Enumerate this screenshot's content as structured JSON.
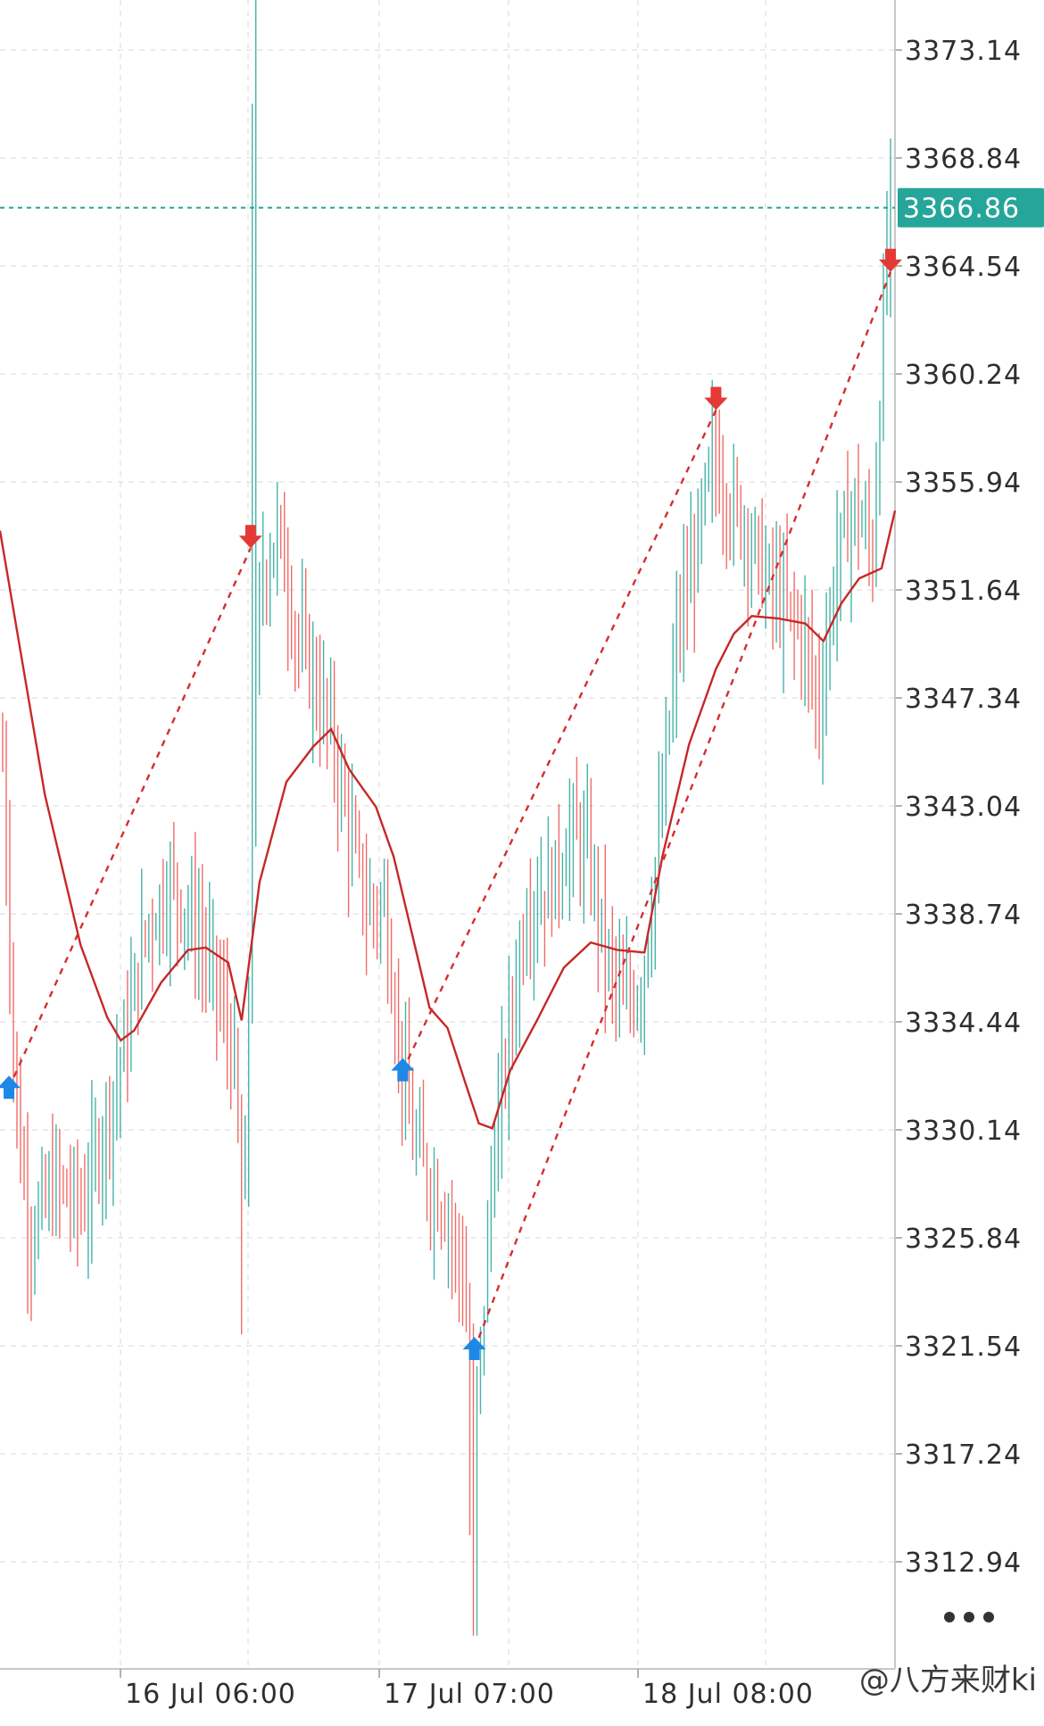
{
  "chart_data": {
    "type": "line",
    "instrument_hint": "candlestick price chart with moving average",
    "y_ticks": [
      "3373.14",
      "3368.84",
      "3364.54",
      "3360.24",
      "3355.94",
      "3351.64",
      "3347.34",
      "3343.04",
      "3338.74",
      "3334.44",
      "3330.14",
      "3325.84",
      "3321.54",
      "3317.24",
      "3312.94"
    ],
    "ylim": [
      3308.6,
      3375.5
    ],
    "x_ticks": [
      "16 Jul 06:00",
      "17 Jul 07:00",
      "18 Jul 08:00"
    ],
    "current_price": "3366.86",
    "grid": true,
    "colors": {
      "up": "#26a69a",
      "down": "#ef5350",
      "ma": "#c62828",
      "current_line": "#26a69a",
      "buy_arrow": "#1e88e5",
      "sell_arrow": "#e53935",
      "trade_line": "#d32f2f"
    },
    "moving_average": [
      [
        0,
        3354.0
      ],
      [
        0.05,
        3343.5
      ],
      [
        0.09,
        3337.5
      ],
      [
        0.12,
        3334.6
      ],
      [
        0.135,
        3333.7
      ],
      [
        0.15,
        3334.1
      ],
      [
        0.18,
        3336.0
      ],
      [
        0.21,
        3337.3
      ],
      [
        0.23,
        3337.4
      ],
      [
        0.255,
        3336.8
      ],
      [
        0.27,
        3334.5
      ],
      [
        0.29,
        3340.0
      ],
      [
        0.32,
        3344.0
      ],
      [
        0.35,
        3345.4
      ],
      [
        0.37,
        3346.1
      ],
      [
        0.39,
        3344.5
      ],
      [
        0.42,
        3343.0
      ],
      [
        0.44,
        3341.0
      ],
      [
        0.46,
        3338.0
      ],
      [
        0.48,
        3335.0
      ],
      [
        0.5,
        3334.2
      ],
      [
        0.52,
        3332.0
      ],
      [
        0.535,
        3330.4
      ],
      [
        0.55,
        3330.2
      ],
      [
        0.57,
        3332.5
      ],
      [
        0.6,
        3334.5
      ],
      [
        0.63,
        3336.6
      ],
      [
        0.66,
        3337.6
      ],
      [
        0.69,
        3337.3
      ],
      [
        0.72,
        3337.2
      ],
      [
        0.74,
        3341.0
      ],
      [
        0.77,
        3345.5
      ],
      [
        0.8,
        3348.5
      ],
      [
        0.82,
        3349.9
      ],
      [
        0.84,
        3350.6
      ],
      [
        0.87,
        3350.5
      ],
      [
        0.9,
        3350.3
      ],
      [
        0.92,
        3349.6
      ],
      [
        0.94,
        3351.1
      ],
      [
        0.96,
        3352.1
      ],
      [
        0.985,
        3352.5
      ],
      [
        1.0,
        3354.8
      ]
    ],
    "trades": [
      {
        "type": "buy",
        "x": 0.01,
        "price": 3331.8
      },
      {
        "type": "sell",
        "x": 0.28,
        "price": 3353.3
      },
      {
        "type": "buy",
        "x": 0.45,
        "price": 3332.5
      },
      {
        "type": "sell",
        "x": 0.8,
        "price": 3358.8
      },
      {
        "type": "buy",
        "x": 0.53,
        "price": 3321.4
      },
      {
        "type": "sell",
        "x": 0.995,
        "price": 3364.3
      }
    ],
    "candles_summary": {
      "high": 3375.5,
      "low": 3310.0
    }
  },
  "ui": {
    "more_icon": "more-horizontal-icon",
    "watermark": "@八方来财ki"
  }
}
